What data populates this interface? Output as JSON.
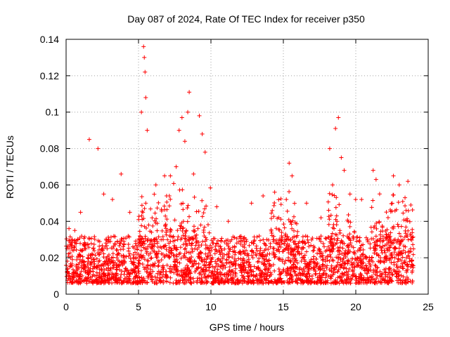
{
  "chart_data": {
    "type": "scatter",
    "title": "Day 087 of 2024, Rate Of TEC Index for receiver p350",
    "xlabel": "GPS time / hours",
    "ylabel": "ROTI / TECUs",
    "xlim": [
      0,
      25
    ],
    "ylim": [
      0,
      0.14
    ],
    "x_ticks": [
      0,
      5,
      10,
      15,
      20,
      25
    ],
    "x_tick_labels": [
      "0",
      "5",
      "10",
      "15",
      "20",
      "25"
    ],
    "y_ticks": [
      0,
      0.02,
      0.04,
      0.06,
      0.08,
      0.1,
      0.12,
      0.14
    ],
    "y_tick_labels": [
      "0",
      "0.02",
      "0.04",
      "0.06",
      "0.08",
      "0.1",
      "0.12",
      "0.14"
    ],
    "grid": true,
    "marker": "+",
    "marker_color": "#ff0000",
    "series": [
      {
        "name": "ROTI",
        "x": [
          0.1,
          0.3,
          0.5,
          0.7,
          0.9,
          1.1,
          1.3,
          1.5,
          1.7,
          1.9,
          2.1,
          2.3,
          2.5,
          2.7,
          2.9,
          3.1,
          3.3,
          3.5,
          3.7,
          3.9,
          4.1,
          4.3,
          4.5,
          4.7,
          4.9,
          5.1,
          5.3,
          5.5,
          5.7,
          5.9,
          6.1,
          6.3,
          6.5,
          6.7,
          6.9,
          7.1,
          7.3,
          7.5,
          7.7,
          7.9,
          8.1,
          8.3,
          8.5,
          8.7,
          8.9,
          9.1,
          9.3,
          9.5,
          9.7,
          9.9,
          10.1,
          10.3,
          10.5,
          10.7,
          10.9,
          11.1,
          11.3,
          11.5,
          11.7,
          11.9,
          12.1,
          12.3,
          12.5,
          12.7,
          12.9,
          13.1,
          13.3,
          13.5,
          13.7,
          13.9,
          14.1,
          14.3,
          14.5,
          14.7,
          14.9,
          15.1,
          15.3,
          15.5,
          15.7,
          15.9,
          16.1,
          16.3,
          16.5,
          16.7,
          16.9,
          17.1,
          17.3,
          17.5,
          17.7,
          17.9,
          18.1,
          18.3,
          18.5,
          18.7,
          18.9,
          19.1,
          19.3,
          19.5,
          19.7,
          19.9,
          20.1,
          20.3,
          20.5,
          20.7,
          20.9,
          21.1,
          21.3,
          21.5,
          21.7,
          21.9,
          22.1,
          22.3,
          22.5,
          22.7,
          22.9,
          23.1,
          23.3,
          23.5,
          23.7,
          23.9,
          0.2,
          0.6,
          1.0,
          1.6,
          2.2,
          2.6,
          3.2,
          3.8,
          4.4,
          5.2,
          5.35,
          5.4,
          5.45,
          5.5,
          5.6,
          6.2,
          6.8,
          7.2,
          7.6,
          7.8,
          8.0,
          8.2,
          8.4,
          8.5,
          8.8,
          9.2,
          9.4,
          9.6,
          10.4,
          11.2,
          12.8,
          13.6,
          14.4,
          15.4,
          15.6,
          16.6,
          17.6,
          18.2,
          18.4,
          18.6,
          18.8,
          19.0,
          19.2,
          19.6,
          20.4,
          21.2,
          21.4,
          22.6,
          23.0,
          23.4,
          23.6,
          23.8
        ],
        "y": [
          0.014,
          0.02,
          0.012,
          0.016,
          0.022,
          0.018,
          0.025,
          0.02,
          0.016,
          0.019,
          0.015,
          0.022,
          0.024,
          0.017,
          0.013,
          0.018,
          0.016,
          0.02,
          0.028,
          0.016,
          0.014,
          0.012,
          0.018,
          0.02,
          0.022,
          0.032,
          0.045,
          0.05,
          0.038,
          0.034,
          0.03,
          0.028,
          0.026,
          0.03,
          0.034,
          0.028,
          0.024,
          0.026,
          0.03,
          0.036,
          0.04,
          0.035,
          0.03,
          0.028,
          0.032,
          0.036,
          0.038,
          0.034,
          0.03,
          0.024,
          0.02,
          0.018,
          0.016,
          0.015,
          0.016,
          0.017,
          0.015,
          0.016,
          0.014,
          0.016,
          0.015,
          0.017,
          0.018,
          0.016,
          0.02,
          0.022,
          0.018,
          0.021,
          0.024,
          0.022,
          0.026,
          0.03,
          0.028,
          0.026,
          0.028,
          0.03,
          0.026,
          0.022,
          0.024,
          0.026,
          0.022,
          0.02,
          0.018,
          0.016,
          0.018,
          0.017,
          0.016,
          0.015,
          0.016,
          0.018,
          0.026,
          0.03,
          0.036,
          0.04,
          0.035,
          0.028,
          0.022,
          0.018,
          0.016,
          0.015,
          0.02,
          0.024,
          0.022,
          0.02,
          0.018,
          0.02,
          0.024,
          0.022,
          0.02,
          0.018,
          0.021,
          0.024,
          0.022,
          0.02,
          0.018,
          0.022,
          0.024,
          0.02,
          0.018,
          0.016,
          0.036,
          0.035,
          0.045,
          0.085,
          0.08,
          0.055,
          0.052,
          0.066,
          0.045,
          0.1,
          0.136,
          0.13,
          0.122,
          0.108,
          0.09,
          0.06,
          0.065,
          0.065,
          0.07,
          0.09,
          0.097,
          0.084,
          0.1,
          0.111,
          0.066,
          0.098,
          0.088,
          0.078,
          0.048,
          0.04,
          0.05,
          0.054,
          0.056,
          0.072,
          0.065,
          0.05,
          0.042,
          0.08,
          0.06,
          0.091,
          0.097,
          0.075,
          0.068,
          0.055,
          0.052,
          0.068,
          0.063,
          0.065,
          0.06,
          0.053,
          0.062,
          0.049
        ]
      }
    ],
    "series_generated_background": {
      "description": "Dense scatter of ROTI values across 0-24 h, baseline mostly 0.005-0.035 TECU with bursts",
      "x_range": [
        0,
        24
      ],
      "y_range": [
        0.003,
        0.035
      ]
    }
  }
}
